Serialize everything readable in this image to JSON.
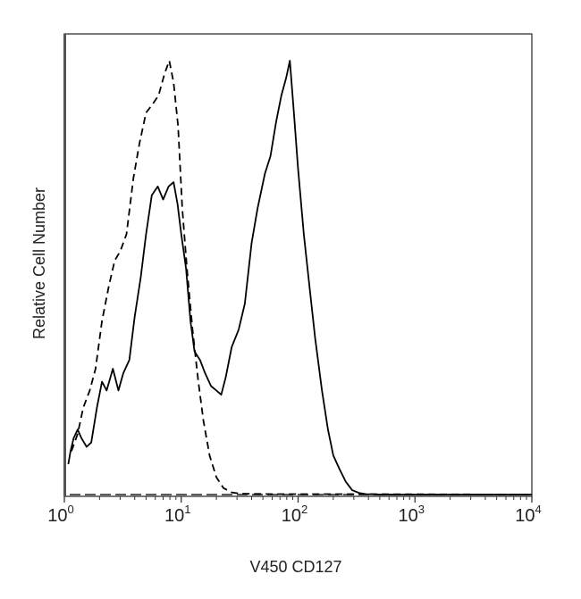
{
  "chart_data": {
    "type": "line",
    "title": "",
    "xlabel": "V450 CD127",
    "ylabel": "Relative Cell Number",
    "x_scale": "log",
    "xlim": [
      1,
      10000
    ],
    "ylim": [
      0,
      100
    ],
    "y_ticks_labeled": false,
    "grid": false,
    "legend": "none",
    "x_ticks": [
      {
        "value": 1,
        "base": "10",
        "exp": "0"
      },
      {
        "value": 10,
        "base": "10",
        "exp": "1"
      },
      {
        "value": 100,
        "base": "10",
        "exp": "2"
      },
      {
        "value": 1000,
        "base": "10",
        "exp": "3"
      },
      {
        "value": 10000,
        "base": "10",
        "exp": "4"
      }
    ],
    "series": [
      {
        "style": "solid",
        "color": "#000000",
        "points": [
          [
            1.08,
            7
          ],
          [
            1.13,
            10
          ],
          [
            1.2,
            13
          ],
          [
            1.3,
            15
          ],
          [
            1.4,
            13
          ],
          [
            1.55,
            11
          ],
          [
            1.7,
            12
          ],
          [
            1.9,
            20
          ],
          [
            2.1,
            26
          ],
          [
            2.3,
            24
          ],
          [
            2.6,
            29
          ],
          [
            2.9,
            24
          ],
          [
            3.2,
            28
          ],
          [
            3.6,
            31
          ],
          [
            4.0,
            41
          ],
          [
            4.5,
            50
          ],
          [
            5.0,
            60
          ],
          [
            5.6,
            69
          ],
          [
            6.3,
            71
          ],
          [
            7.0,
            68
          ],
          [
            7.8,
            71
          ],
          [
            8.6,
            72
          ],
          [
            9.3,
            67
          ],
          [
            10.0,
            60
          ],
          [
            11.0,
            52
          ],
          [
            12.0,
            40
          ],
          [
            13.0,
            33
          ],
          [
            14.5,
            31
          ],
          [
            16.0,
            28
          ],
          [
            18.0,
            25
          ],
          [
            20.0,
            24
          ],
          [
            22.0,
            23
          ],
          [
            24.0,
            27
          ],
          [
            27.0,
            34
          ],
          [
            31.0,
            38
          ],
          [
            35.0,
            44
          ],
          [
            40.0,
            58
          ],
          [
            45.0,
            66
          ],
          [
            52.0,
            74
          ],
          [
            58.0,
            78
          ],
          [
            65.0,
            86
          ],
          [
            72.0,
            92
          ],
          [
            79.0,
            96
          ],
          [
            85.0,
            100
          ],
          [
            92.0,
            88
          ],
          [
            100.0,
            75
          ],
          [
            112.0,
            60
          ],
          [
            125.0,
            48
          ],
          [
            140.0,
            36
          ],
          [
            160.0,
            24
          ],
          [
            180.0,
            15
          ],
          [
            200.0,
            9
          ],
          [
            225.0,
            6
          ],
          [
            255.0,
            3
          ],
          [
            290.0,
            1
          ],
          [
            330.0,
            0.4
          ],
          [
            380.0,
            0.1
          ],
          [
            500.0,
            0
          ],
          [
            10000,
            0
          ]
        ]
      },
      {
        "style": "dashed",
        "color": "#000000",
        "points": [
          [
            1.15,
            10
          ],
          [
            1.3,
            14
          ],
          [
            1.45,
            20
          ],
          [
            1.65,
            24
          ],
          [
            1.85,
            29
          ],
          [
            2.1,
            40
          ],
          [
            2.4,
            48
          ],
          [
            2.7,
            54
          ],
          [
            3.0,
            56
          ],
          [
            3.4,
            60
          ],
          [
            3.9,
            73
          ],
          [
            4.4,
            81
          ],
          [
            5.0,
            88
          ],
          [
            5.7,
            90
          ],
          [
            6.4,
            92
          ],
          [
            7.2,
            97
          ],
          [
            7.9,
            100
          ],
          [
            8.6,
            95
          ],
          [
            9.4,
            85
          ],
          [
            10.2,
            66
          ],
          [
            11.2,
            52
          ],
          [
            12.5,
            38
          ],
          [
            14.0,
            26
          ],
          [
            15.5,
            17
          ],
          [
            17.5,
            9
          ],
          [
            20.0,
            4
          ],
          [
            23.0,
            1.5
          ],
          [
            27.0,
            0.5
          ],
          [
            32.0,
            0.2
          ],
          [
            60.0,
            0.1
          ],
          [
            300.0,
            0.1
          ],
          [
            10000,
            0
          ]
        ]
      }
    ]
  }
}
